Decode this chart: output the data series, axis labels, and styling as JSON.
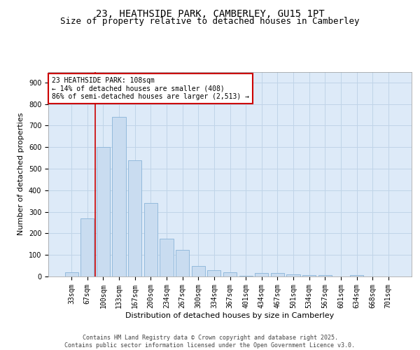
{
  "title_line1": "23, HEATHSIDE PARK, CAMBERLEY, GU15 1PT",
  "title_line2": "Size of property relative to detached houses in Camberley",
  "xlabel": "Distribution of detached houses by size in Camberley",
  "ylabel": "Number of detached properties",
  "categories": [
    "33sqm",
    "67sqm",
    "100sqm",
    "133sqm",
    "167sqm",
    "200sqm",
    "234sqm",
    "267sqm",
    "300sqm",
    "334sqm",
    "367sqm",
    "401sqm",
    "434sqm",
    "467sqm",
    "501sqm",
    "534sqm",
    "567sqm",
    "601sqm",
    "634sqm",
    "668sqm",
    "701sqm"
  ],
  "values": [
    20,
    270,
    600,
    740,
    540,
    340,
    175,
    125,
    50,
    30,
    20,
    2,
    15,
    15,
    10,
    5,
    5,
    0,
    5,
    0,
    0
  ],
  "bar_color": "#c9dcf0",
  "bar_edge_color": "#8ab4d8",
  "vline_index": 2,
  "annotation_text": "23 HEATHSIDE PARK: 108sqm\n← 14% of detached houses are smaller (408)\n86% of semi-detached houses are larger (2,513) →",
  "annotation_box_facecolor": "#ffffff",
  "annotation_box_edgecolor": "#cc0000",
  "vline_color": "#cc0000",
  "ylim": [
    0,
    950
  ],
  "yticks": [
    0,
    100,
    200,
    300,
    400,
    500,
    600,
    700,
    800,
    900
  ],
  "grid_color": "#c0d4e8",
  "plot_bg_color": "#ddeaf8",
  "footer_text": "Contains HM Land Registry data © Crown copyright and database right 2025.\nContains public sector information licensed under the Open Government Licence v3.0.",
  "title_fontsize": 10,
  "subtitle_fontsize": 9,
  "ylabel_fontsize": 8,
  "xlabel_fontsize": 8,
  "tick_fontsize": 7,
  "annot_fontsize": 7,
  "footer_fontsize": 6
}
